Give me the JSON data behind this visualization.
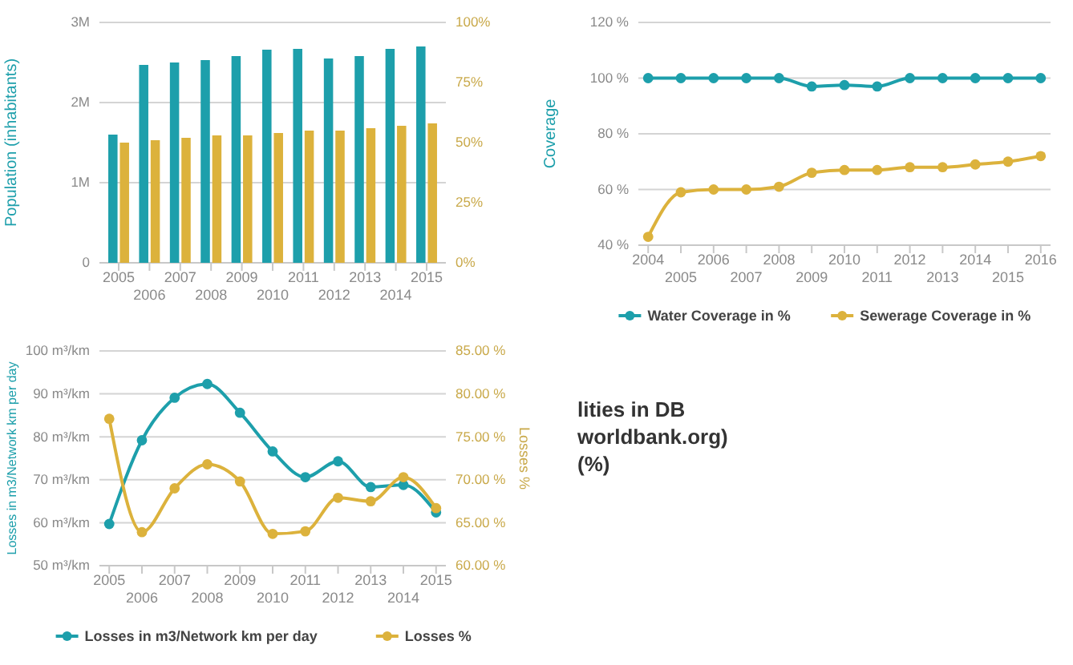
{
  "chart_data": [
    {
      "type": "bar",
      "ylabel": "Population (inhabitants)",
      "categories": [
        "2005",
        "2006",
        "2007",
        "2008",
        "2009",
        "2010",
        "2011",
        "2012",
        "2013",
        "2014",
        "2015"
      ],
      "series": [
        {
          "color": "#1d9fab",
          "values": [
            1600000,
            2470000,
            2500000,
            2530000,
            2580000,
            2660000,
            2670000,
            2550000,
            2580000,
            2670000,
            2700000
          ]
        },
        {
          "color": "#dcb23c",
          "axis": "y2",
          "values": [
            50,
            51,
            52,
            53,
            53,
            54,
            55,
            55,
            56,
            57,
            58
          ]
        }
      ],
      "ylim": [
        0,
        3000000
      ],
      "yticks": [
        {
          "value": 0,
          "label": "0"
        },
        {
          "value": 1000000,
          "label": "1M"
        },
        {
          "value": 2000000,
          "label": "2M"
        },
        {
          "value": 3000000,
          "label": "3M"
        }
      ],
      "y2lim": [
        0,
        100
      ],
      "y2ticks": [
        {
          "value": 0,
          "label": "0%"
        },
        {
          "value": 25,
          "label": "25%"
        },
        {
          "value": 50,
          "label": "50%"
        },
        {
          "value": 75,
          "label": "75%"
        },
        {
          "value": 100,
          "label": "100%"
        }
      ],
      "grid": "y",
      "legend": false,
      "annotations": [
        "lities in DB",
        "worldbank.org)",
        "(%)"
      ]
    },
    {
      "type": "line",
      "ylabel": "Coverage",
      "categories": [
        "2004",
        "2005",
        "2006",
        "2007",
        "2008",
        "2009",
        "2010",
        "2011",
        "2012",
        "2013",
        "2014",
        "2015",
        "2016"
      ],
      "series": [
        {
          "name": "Water Coverage in %",
          "color": "#1d9fab",
          "values": [
            100,
            100,
            100,
            100,
            100,
            97,
            97.5,
            97,
            100,
            100,
            100,
            100,
            100
          ]
        },
        {
          "name": "Sewerage Coverage in %",
          "color": "#dcb23c",
          "values": [
            43,
            59,
            60,
            60,
            61,
            66,
            67,
            67,
            68,
            68,
            69,
            70,
            72
          ]
        }
      ],
      "ylim": [
        40,
        120
      ],
      "yticks": [
        {
          "value": 40,
          "label": "40 %"
        },
        {
          "value": 60,
          "label": "60 %"
        },
        {
          "value": 80,
          "label": "80 %"
        },
        {
          "value": 100,
          "label": "100 %"
        },
        {
          "value": 120,
          "label": "120 %"
        }
      ],
      "grid": "y",
      "legend": "bottom",
      "marker": "circle",
      "line_style": "solid"
    },
    {
      "type": "line",
      "ylabel": "Losses in m3/Network km per day",
      "y2label": "Losses %",
      "categories": [
        "2005",
        "2006",
        "2007",
        "2008",
        "2009",
        "2010",
        "2011",
        "2012",
        "2013",
        "2014",
        "2015"
      ],
      "series": [
        {
          "name": "Losses in m3/Network km per day",
          "color": "#1d9fab",
          "values": [
            59.7,
            79.2,
            89.1,
            92.3,
            85.6,
            76.6,
            70.6,
            74.3,
            68.3,
            68.8,
            62.4
          ]
        },
        {
          "name": "Losses %",
          "color": "#dcb23c",
          "axis": "y2",
          "values": [
            77.1,
            63.9,
            69.0,
            71.8,
            69.8,
            63.7,
            64.0,
            67.9,
            67.5,
            70.3,
            66.7
          ]
        }
      ],
      "ylim": [
        50,
        100
      ],
      "yticks": [
        {
          "value": 50,
          "label": "50 m³/km"
        },
        {
          "value": 60,
          "label": "60 m³/km"
        },
        {
          "value": 70,
          "label": "70 m³/km"
        },
        {
          "value": 80,
          "label": "80 m³/km"
        },
        {
          "value": 90,
          "label": "90 m³/km"
        },
        {
          "value": 100,
          "label": "100 m³/km"
        }
      ],
      "y2lim": [
        60,
        85
      ],
      "y2ticks": [
        {
          "value": 60,
          "label": "60.00 %"
        },
        {
          "value": 65,
          "label": "65.00 %"
        },
        {
          "value": 70,
          "label": "70.00 %"
        },
        {
          "value": 75,
          "label": "75.00 %"
        },
        {
          "value": 80,
          "label": "80.00 %"
        },
        {
          "value": 85,
          "label": "85.00 %"
        }
      ],
      "grid": "y",
      "legend": "bottom",
      "marker": "circle",
      "line_style": "solid"
    }
  ]
}
